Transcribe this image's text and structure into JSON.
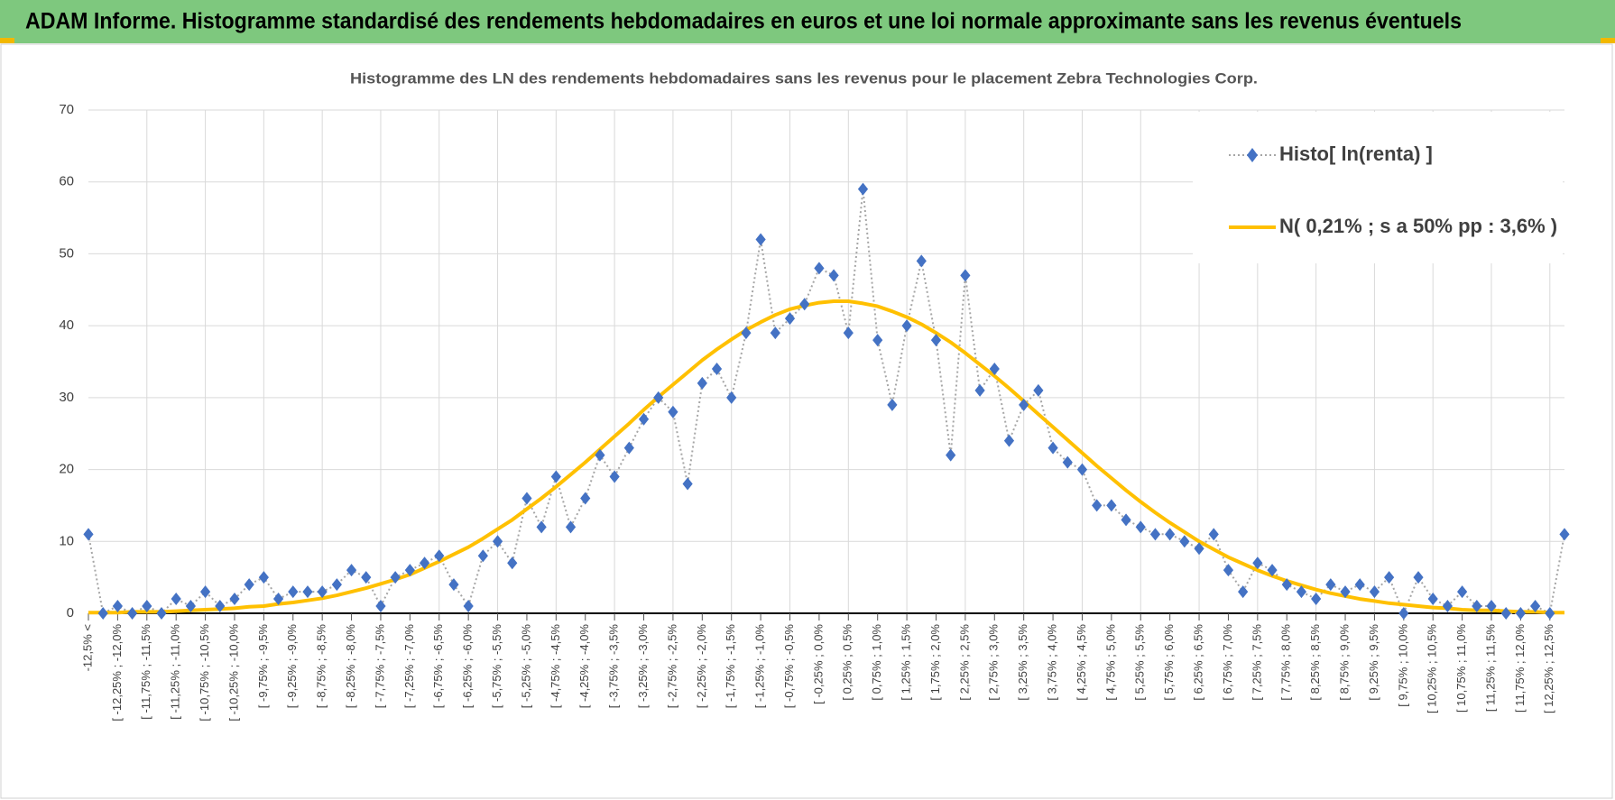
{
  "header": {
    "title": "ADAM Informe. Histogramme standardisé des rendements hebdomadaires en euros et une loi normale approximante sans les revenus éventuels"
  },
  "chart_data": {
    "type": "line",
    "title": "Histogramme des LN des rendements hebdomadaires sans les revenus pour le placement Zebra Technologies Corp.",
    "categories": [
      "-12,5% <",
      null,
      "[ -12,25% ; -12,0%",
      null,
      "[ -11,75% ; -11,5%",
      null,
      "[ -11,25% ; -11,0%",
      null,
      "[ -10,75% ; -10,5%",
      null,
      "[ -10,25% ; -10,0%",
      null,
      "[ -9,75% ; -9,5%",
      null,
      "[ -9,25% ; -9,0%",
      null,
      "[ -8,75% ; -8,5%",
      null,
      "[ -8,25% ; -8,0%",
      null,
      "[ -7,75% ; -7,5%",
      null,
      "[ -7,25% ; -7,0%",
      null,
      "[ -6,75% ; -6,5%",
      null,
      "[ -6,25% ; -6,0%",
      null,
      "[ -5,75% ; -5,5%",
      null,
      "[ -5,25% ; -5,0%",
      null,
      "[ -4,75% ; -4,5%",
      null,
      "[ -4,25% ; -4,0%",
      null,
      "[ -3,75% ; -3,5%",
      null,
      "[ -3,25% ; -3,0%",
      null,
      "[ -2,75% ; -2,5%",
      null,
      "[ -2,25% ; -2,0%",
      null,
      "[ -1,75% ; -1,5%",
      null,
      "[ -1,25% ; -1,0%",
      null,
      "[ -0,75% ; -0,5%",
      null,
      "[ -0,25% ; 0,0%",
      null,
      "[ 0,25% ; 0,5%",
      null,
      "[ 0,75% ; 1,0%",
      null,
      "[ 1,25% ; 1,5%",
      null,
      "[ 1,75% ; 2,0%",
      null,
      "[ 2,25% ; 2,5%",
      null,
      "[ 2,75% ; 3,0%",
      null,
      "[ 3,25% ; 3,5%",
      null,
      "[ 3,75% ; 4,0%",
      null,
      "[ 4,25% ; 4,5%",
      null,
      "[ 4,75% ; 5,0%",
      null,
      "[ 5,25% ; 5,5%",
      null,
      "[ 5,75% ; 6,0%",
      null,
      "[ 6,25% ; 6,5%",
      null,
      "[ 6,75% ; 7,0%",
      null,
      "[ 7,25% ; 7,5%",
      null,
      "[ 7,75% ; 8,0%",
      null,
      "[ 8,25% ; 8,5%",
      null,
      "[ 8,75% ; 9,0%",
      null,
      "[ 9,25% ; 9,5%",
      null,
      "[ 9,75% ; 10,0%",
      null,
      "[ 10,25% ; 10,5%",
      null,
      "[ 10,75% ; 11,0%",
      null,
      "[ 11,25% ; 11,5%",
      null,
      "[ 11,75% ; 12,0%",
      null,
      "[ 12,25% ; 12,5%",
      null
    ],
    "series": [
      {
        "name": "Histo[ ln(renta) ]",
        "color": "#4472c4",
        "values": [
          11,
          0,
          1,
          0,
          1,
          0,
          2,
          1,
          3,
          1,
          2,
          4,
          5,
          2,
          3,
          3,
          3,
          4,
          6,
          5,
          1,
          5,
          6,
          7,
          8,
          4,
          1,
          8,
          10,
          7,
          16,
          12,
          19,
          12,
          16,
          22,
          19,
          23,
          27,
          30,
          28,
          18,
          32,
          34,
          30,
          39,
          52,
          39,
          41,
          43,
          48,
          47,
          39,
          59,
          38,
          29,
          40,
          49,
          38,
          22,
          47,
          31,
          34,
          24,
          29,
          31,
          23,
          21,
          20,
          15,
          15,
          13,
          12,
          11,
          11,
          10,
          9,
          11,
          6,
          3,
          7,
          6,
          4,
          3,
          2,
          4,
          3,
          4,
          3,
          5,
          0,
          5,
          2,
          1,
          3,
          1,
          1,
          0,
          0,
          1,
          0,
          11
        ]
      },
      {
        "name": "N( 0,21% ; s a 50% pp : 3,6% )",
        "color": "#ffc000",
        "values": [
          0.1,
          0.1,
          0.1,
          0.2,
          0.2,
          0.2,
          0.3,
          0.4,
          0.5,
          0.6,
          0.7,
          0.9,
          1.0,
          1.3,
          1.5,
          1.8,
          2.1,
          2.5,
          3.0,
          3.5,
          4.1,
          4.7,
          5.4,
          6.3,
          7.2,
          8.2,
          9.2,
          10.4,
          11.7,
          13.0,
          14.5,
          16.0,
          17.6,
          19.3,
          21.0,
          22.8,
          24.6,
          26.4,
          28.3,
          30.1,
          31.8,
          33.5,
          35.2,
          36.7,
          38.1,
          39.4,
          40.5,
          41.5,
          42.3,
          42.8,
          43.2,
          43.4,
          43.4,
          43.1,
          42.7,
          42.0,
          41.2,
          40.2,
          39.0,
          37.7,
          36.2,
          34.6,
          33.0,
          31.3,
          29.5,
          27.7,
          25.9,
          24.1,
          22.3,
          20.5,
          18.8,
          17.1,
          15.5,
          14.0,
          12.6,
          11.3,
          10.0,
          8.9,
          7.8,
          6.9,
          6.0,
          5.2,
          4.5,
          3.9,
          3.3,
          2.8,
          2.4,
          2.0,
          1.7,
          1.4,
          1.2,
          1.0,
          0.8,
          0.7,
          0.5,
          0.4,
          0.4,
          0.3,
          0.2,
          0.2,
          0.1,
          0.1
        ]
      }
    ],
    "ylim": [
      0,
      70
    ],
    "yticks": [
      0,
      10,
      20,
      30,
      40,
      50,
      60,
      70
    ],
    "grid": true,
    "legend": "top-right"
  }
}
